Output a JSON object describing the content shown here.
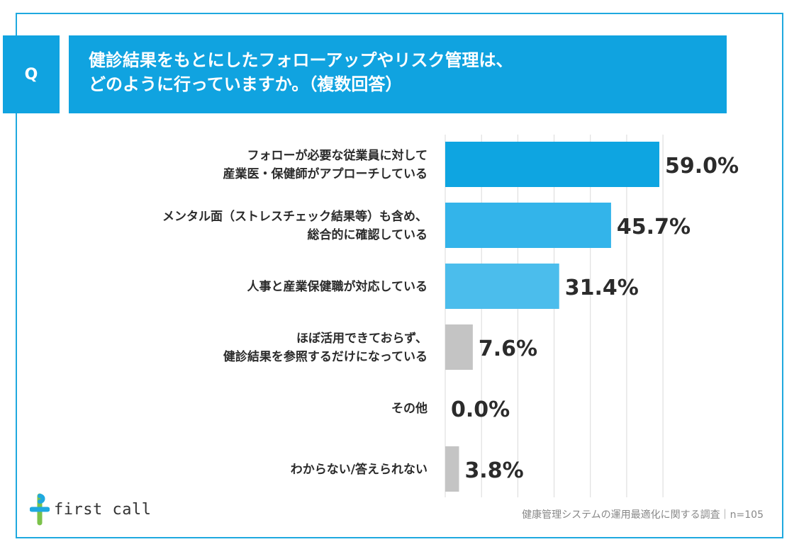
{
  "header": {
    "q_label": "Q",
    "title_line1": "健診結果をもとにしたフォローアップやリスク管理は、",
    "title_line2": "どのように行っていますか。（複数回答）"
  },
  "chart_data": {
    "type": "bar",
    "orientation": "horizontal",
    "categories": [
      [
        "フォローが必要な従業員に対して",
        "産業医・保健師がアプローチしている"
      ],
      [
        "メンタル面（ストレスチェック結果等）も含め、",
        "総合的に確認している"
      ],
      [
        "人事と産業保健職が対応している"
      ],
      [
        "ほぼ活用できておらず、",
        "健診結果を参照するだけになっている"
      ],
      [
        "その他"
      ],
      [
        "わからない/答えられない"
      ]
    ],
    "values": [
      59.0,
      45.7,
      31.4,
      7.6,
      0.0,
      3.8
    ],
    "value_labels": [
      "59.0%",
      "45.7%",
      "31.4%",
      "7.6%",
      "0.0%",
      "3.8%"
    ],
    "bar_colors": [
      "#0ea5e1",
      "#33b4ea",
      "#4bbdec",
      "#c4c4c4",
      "#c4c4c4",
      "#c4c4c4"
    ],
    "xlim": [
      0,
      60
    ],
    "grid": true
  },
  "footer": {
    "logo_text": "first call",
    "source": "健康管理システムの運用最適化に関する調査｜n=105"
  }
}
